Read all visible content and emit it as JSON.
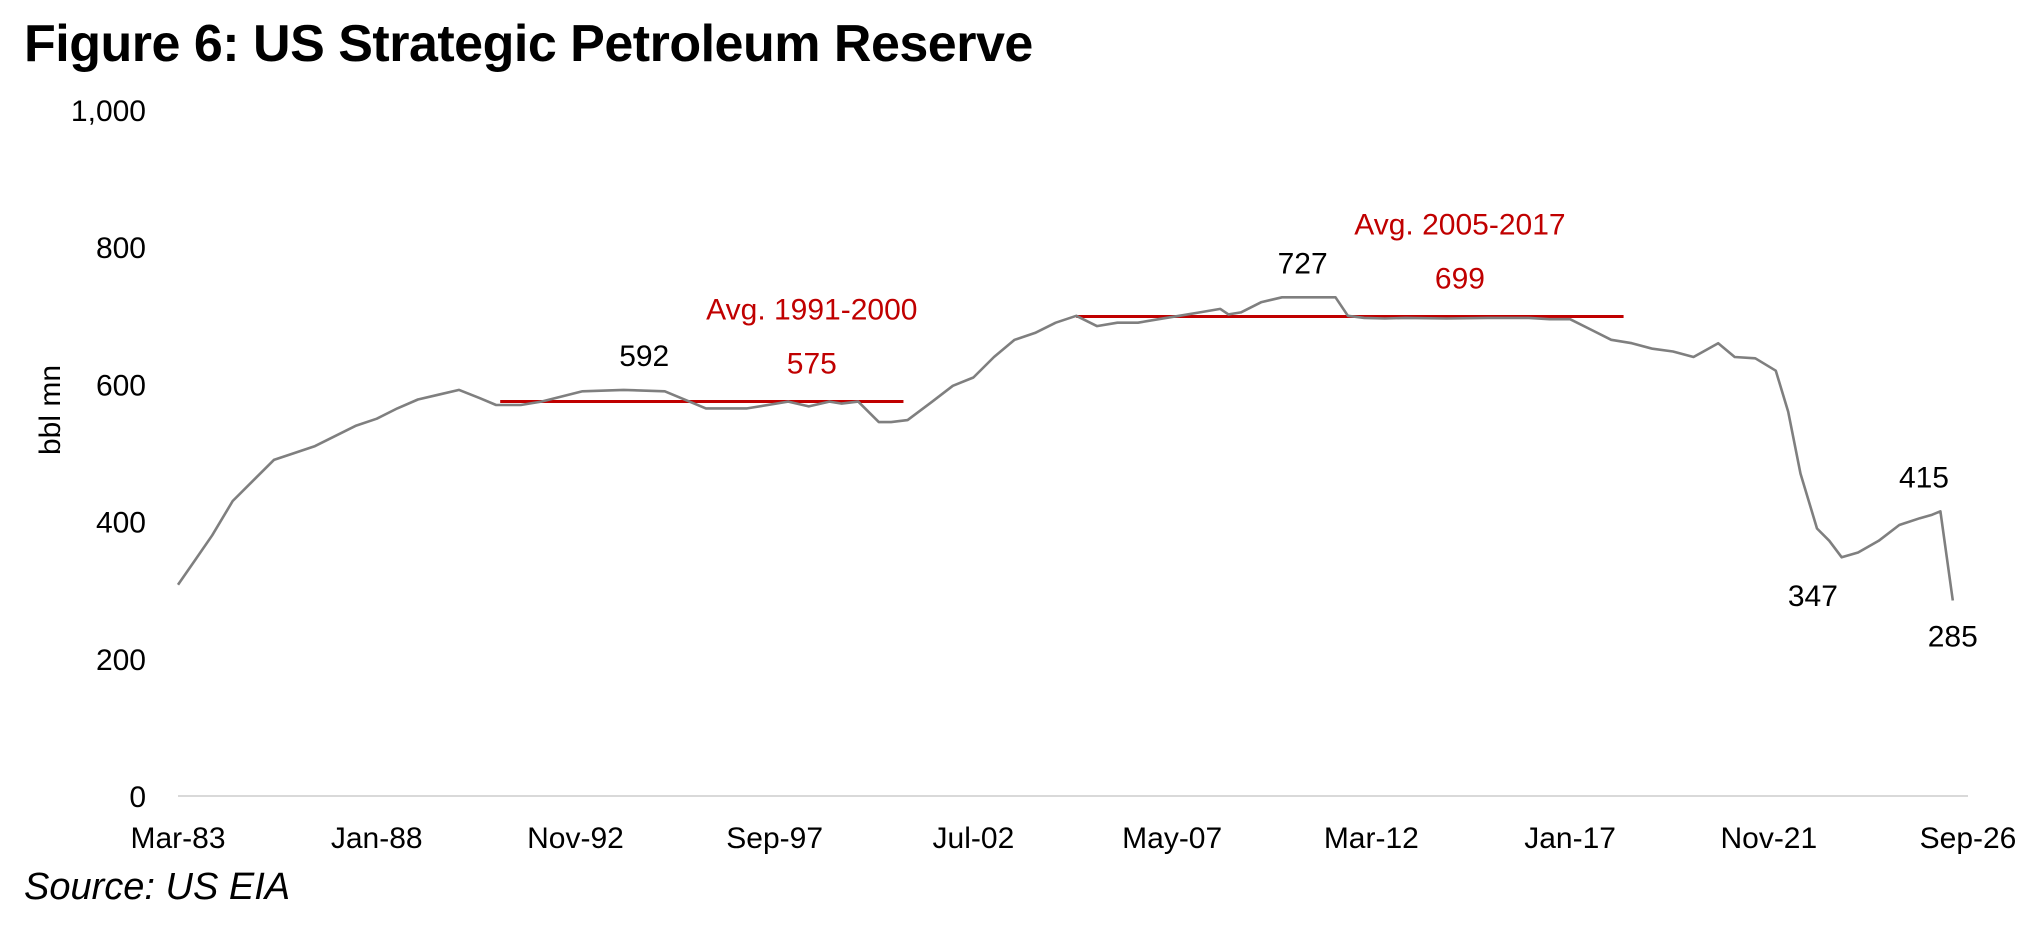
{
  "title": "Figure 6: US Strategic Petroleum Reserve",
  "source": "Source: US EIA",
  "chart_data": {
    "type": "line",
    "ylabel": "bbl mn",
    "xlabel": "",
    "ylim": [
      0,
      1000
    ],
    "yticks": [
      0,
      200,
      400,
      600,
      800,
      1000
    ],
    "ytick_labels": [
      "0",
      "200",
      "400",
      "600",
      "800",
      "1,000"
    ],
    "xticks": [
      1983.17,
      1988.0,
      1992.83,
      1997.67,
      2002.5,
      2007.33,
      2012.17,
      2017.0,
      2021.83,
      2026.67
    ],
    "xtick_labels": [
      "Mar-83",
      "Jan-88",
      "Nov-92",
      "Sep-97",
      "Jul-02",
      "May-07",
      "Mar-12",
      "Jan-17",
      "Nov-21",
      "Sep-26"
    ],
    "xlim": [
      1983.17,
      2026.67
    ],
    "grid": false,
    "colors": {
      "series": "#7f7f7f",
      "average": "#c00000",
      "axis": "#d9d9d9"
    },
    "series": [
      {
        "x": [
          1983.17,
          1983.6,
          1984.0,
          1984.5,
          1985.0,
          1985.5,
          1986.0,
          1986.5,
          1987.0,
          1987.5,
          1988.0,
          1988.5,
          1989.0,
          1989.5,
          1990.0,
          1990.5,
          1990.9,
          1991.2,
          1991.5,
          1992.0,
          1993.0,
          1994.0,
          1995.0,
          1996.0,
          1996.5,
          1997.0,
          1998.0,
          1998.5,
          1999.0,
          1999.3,
          1999.7,
          2000.2,
          2000.5,
          2000.9,
          2001.5,
          2002.0,
          2002.5,
          2003.0,
          2003.5,
          2004.0,
          2004.5,
          2005.0,
          2005.5,
          2006.0,
          2006.5,
          2007.0,
          2007.5,
          2008.0,
          2008.5,
          2008.7,
          2009.0,
          2009.5,
          2010.0,
          2010.5,
          2011.0,
          2011.3,
          2011.6,
          2012.0,
          2012.5,
          2013.0,
          2014.0,
          2015.0,
          2016.0,
          2016.5,
          2017.0,
          2017.5,
          2018.0,
          2018.5,
          2019.0,
          2019.5,
          2020.0,
          2020.3,
          2020.6,
          2021.0,
          2021.5,
          2022.0,
          2022.3,
          2022.6,
          2023.0,
          2023.3,
          2023.6,
          2024.0,
          2024.5,
          2025.0,
          2025.5,
          2025.8,
          2026.0,
          2026.3
        ],
        "values": [
          308,
          345,
          380,
          430,
          460,
          490,
          500,
          510,
          525,
          540,
          550,
          565,
          578,
          585,
          592,
          580,
          570,
          570,
          570,
          575,
          590,
          592,
          590,
          565,
          565,
          565,
          575,
          568,
          575,
          572,
          575,
          545,
          545,
          548,
          575,
          598,
          610,
          640,
          665,
          675,
          690,
          700,
          685,
          690,
          690,
          695,
          700,
          705,
          710,
          702,
          705,
          720,
          727,
          727,
          727,
          727,
          700,
          697,
          696,
          697,
          696,
          697,
          697,
          695,
          695,
          680,
          665,
          660,
          652,
          648,
          640,
          650,
          660,
          640,
          638,
          620,
          560,
          470,
          390,
          372,
          348,
          355,
          372,
          395,
          405,
          410,
          415,
          285
        ]
      }
    ],
    "averages": [
      {
        "label": "Avg. 1991-2000",
        "value_label": "575",
        "value": 575,
        "x_start": 1991.0,
        "x_end": 2000.8
      },
      {
        "label": "Avg. 2005-2017",
        "value_label": "699",
        "value": 699,
        "x_start": 2005.0,
        "x_end": 2018.3
      }
    ],
    "annotations": [
      {
        "text": "592",
        "x": 1994.5,
        "y": 592
      },
      {
        "text": "727",
        "x": 2010.5,
        "y": 727
      },
      {
        "text": "347",
        "x": 2022.9,
        "y": 347
      },
      {
        "text": "415",
        "x": 2025.6,
        "y": 415
      },
      {
        "text": "285",
        "x": 2026.3,
        "y": 285
      }
    ]
  }
}
